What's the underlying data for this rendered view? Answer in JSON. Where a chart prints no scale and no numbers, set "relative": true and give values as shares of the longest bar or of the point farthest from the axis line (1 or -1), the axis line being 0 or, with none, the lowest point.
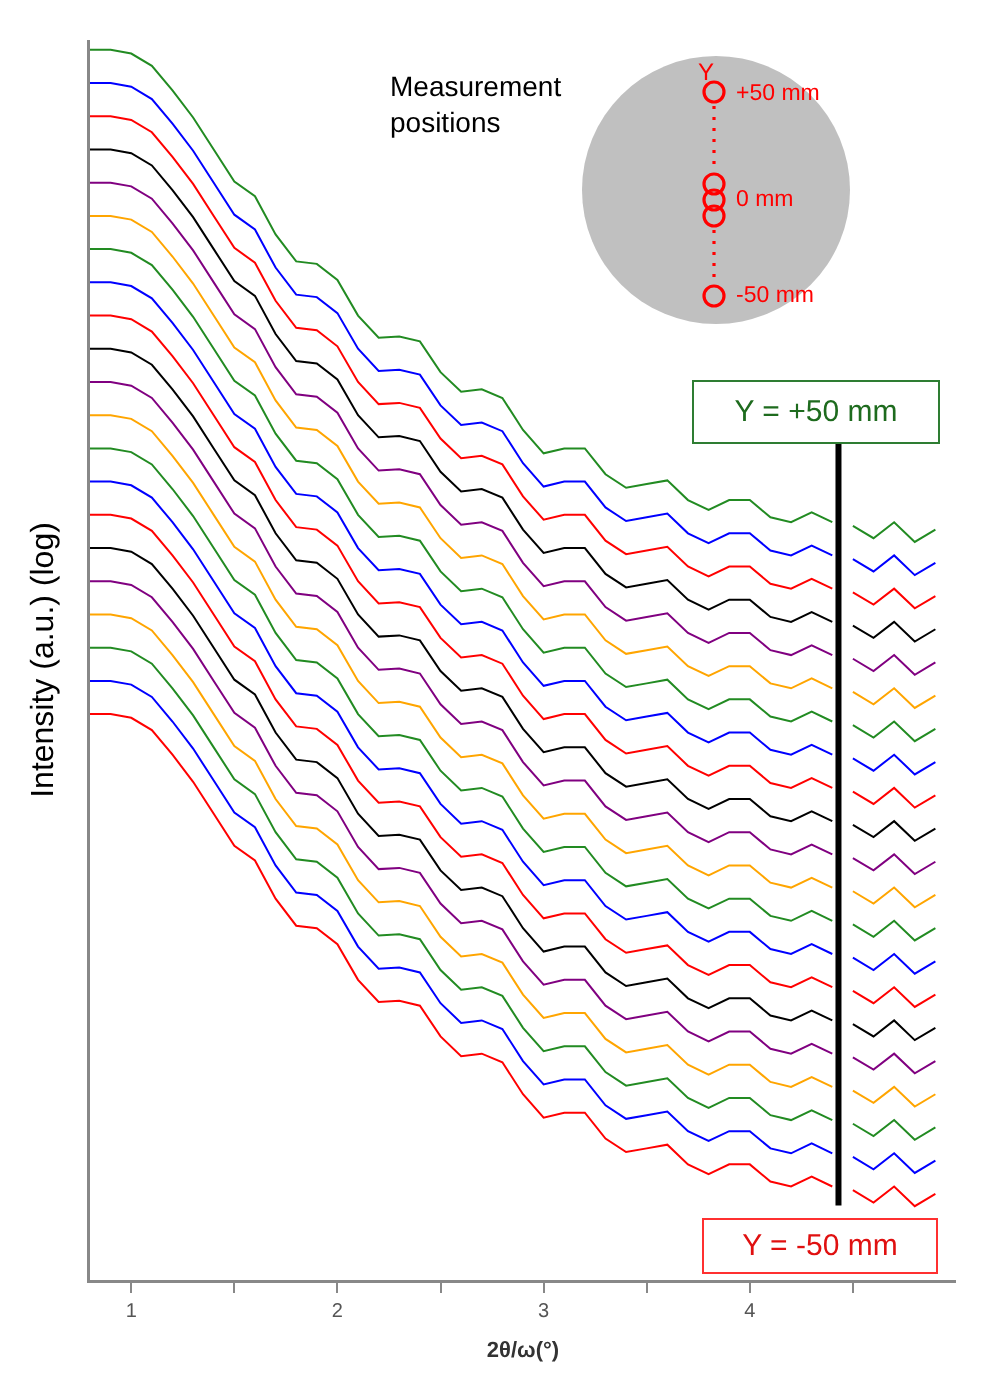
{
  "chart_data": {
    "type": "line",
    "relative": true,
    "xlabel": "2θ/ω(°)",
    "ylabel": "Intensity (a.u.) (log)",
    "xlim": [
      0.8,
      5.0
    ],
    "xticks": [
      1,
      2,
      3,
      4,
      {
        "value": 1.5,
        "label": null
      },
      {
        "value": 2.5,
        "label": null
      },
      {
        "value": 3.5,
        "label": null
      },
      {
        "value": 4.5,
        "label": null
      }
    ],
    "tick_labels": "x",
    "grid": false,
    "x": [
      0.8,
      0.9,
      1.0,
      1.1,
      1.2,
      1.3,
      1.4,
      1.5,
      1.6,
      1.7,
      1.8,
      1.9,
      2.0,
      2.1,
      2.2,
      2.3,
      2.4,
      2.5,
      2.6,
      2.7,
      2.8,
      2.9,
      3.0,
      3.1,
      3.2,
      3.3,
      3.4,
      3.5,
      3.6,
      3.7,
      3.8,
      3.9,
      4.0,
      4.1,
      4.2,
      4.3,
      4.4,
      4.45,
      4.5,
      4.6,
      4.7,
      4.8,
      4.9
    ],
    "series": [
      {
        "color": "#228b22",
        "values": [
          1,
          1,
          0.997,
          0.987,
          0.967,
          0.945,
          0.919,
          0.893,
          0.881,
          0.85,
          0.828,
          0.826,
          0.813,
          0.784,
          0.766,
          0.767,
          0.763,
          0.738,
          0.722,
          0.724,
          0.717,
          0.691,
          0.672,
          0.676,
          0.676,
          0.655,
          0.644,
          0.647,
          0.65,
          0.634,
          0.626,
          0.634,
          0.634,
          0.62,
          0.616,
          0.624,
          0.616,
          null,
          0.613,
          0.603,
          0.616,
          0.6,
          0.61
        ]
      },
      {
        "color": "#0000ff",
        "values": [
          0.973,
          0.973,
          0.97,
          0.96,
          0.94,
          0.918,
          0.892,
          0.866,
          0.854,
          0.823,
          0.801,
          0.799,
          0.786,
          0.757,
          0.739,
          0.74,
          0.736,
          0.711,
          0.695,
          0.697,
          0.69,
          0.664,
          0.645,
          0.649,
          0.649,
          0.628,
          0.617,
          0.62,
          0.623,
          0.607,
          0.599,
          0.607,
          0.607,
          0.593,
          0.589,
          0.597,
          0.589,
          null,
          0.586,
          0.576,
          0.589,
          0.573,
          0.583
        ]
      },
      {
        "color": "#ff0000",
        "values": [
          0.946,
          0.946,
          0.943,
          0.933,
          0.913,
          0.891,
          0.865,
          0.839,
          0.827,
          0.796,
          0.774,
          0.772,
          0.759,
          0.73,
          0.712,
          0.713,
          0.709,
          0.684,
          0.668,
          0.67,
          0.663,
          0.637,
          0.618,
          0.622,
          0.622,
          0.601,
          0.59,
          0.593,
          0.596,
          0.58,
          0.572,
          0.58,
          0.58,
          0.566,
          0.562,
          0.57,
          0.562,
          null,
          0.559,
          0.549,
          0.562,
          0.546,
          0.556
        ]
      },
      {
        "color": "#000000",
        "values": [
          0.919,
          0.919,
          0.916,
          0.906,
          0.886,
          0.864,
          0.838,
          0.812,
          0.8,
          0.769,
          0.747,
          0.745,
          0.732,
          0.703,
          0.685,
          0.686,
          0.682,
          0.657,
          0.641,
          0.643,
          0.636,
          0.61,
          0.591,
          0.595,
          0.595,
          0.574,
          0.563,
          0.566,
          0.569,
          0.553,
          0.545,
          0.553,
          0.553,
          0.539,
          0.535,
          0.543,
          0.535,
          null,
          0.532,
          0.522,
          0.535,
          0.519,
          0.529
        ]
      },
      {
        "color": "#800080",
        "values": [
          0.892,
          0.892,
          0.889,
          0.879,
          0.859,
          0.837,
          0.811,
          0.785,
          0.773,
          0.742,
          0.72,
          0.718,
          0.705,
          0.676,
          0.658,
          0.659,
          0.655,
          0.63,
          0.614,
          0.616,
          0.609,
          0.583,
          0.564,
          0.568,
          0.568,
          0.547,
          0.536,
          0.539,
          0.542,
          0.526,
          0.518,
          0.526,
          0.526,
          0.512,
          0.508,
          0.516,
          0.508,
          null,
          0.505,
          0.495,
          0.508,
          0.492,
          0.502
        ]
      },
      {
        "color": "#ffa500",
        "values": [
          0.865,
          0.865,
          0.862,
          0.852,
          0.832,
          0.81,
          0.784,
          0.758,
          0.746,
          0.715,
          0.693,
          0.691,
          0.678,
          0.649,
          0.631,
          0.632,
          0.628,
          0.603,
          0.587,
          0.589,
          0.582,
          0.556,
          0.537,
          0.541,
          0.541,
          0.52,
          0.509,
          0.512,
          0.515,
          0.499,
          0.491,
          0.499,
          0.499,
          0.485,
          0.481,
          0.489,
          0.481,
          null,
          0.478,
          0.468,
          0.481,
          0.465,
          0.475
        ]
      },
      {
        "color": "#228b22",
        "values": [
          0.838,
          0.838,
          0.835,
          0.825,
          0.805,
          0.783,
          0.757,
          0.731,
          0.719,
          0.688,
          0.666,
          0.664,
          0.651,
          0.622,
          0.604,
          0.605,
          0.601,
          0.576,
          0.56,
          0.562,
          0.555,
          0.529,
          0.51,
          0.514,
          0.514,
          0.493,
          0.482,
          0.485,
          0.488,
          0.472,
          0.464,
          0.472,
          0.472,
          0.458,
          0.454,
          0.462,
          0.454,
          null,
          0.451,
          0.441,
          0.454,
          0.438,
          0.448
        ]
      },
      {
        "color": "#0000ff",
        "values": [
          0.811,
          0.811,
          0.808,
          0.798,
          0.778,
          0.756,
          0.73,
          0.704,
          0.692,
          0.661,
          0.639,
          0.637,
          0.624,
          0.595,
          0.577,
          0.578,
          0.574,
          0.549,
          0.533,
          0.535,
          0.528,
          0.502,
          0.483,
          0.487,
          0.487,
          0.466,
          0.455,
          0.458,
          0.461,
          0.445,
          0.437,
          0.445,
          0.445,
          0.431,
          0.427,
          0.435,
          0.427,
          null,
          0.424,
          0.414,
          0.427,
          0.411,
          0.421
        ]
      },
      {
        "color": "#ff0000",
        "values": [
          0.784,
          0.784,
          0.781,
          0.771,
          0.751,
          0.729,
          0.703,
          0.677,
          0.665,
          0.634,
          0.612,
          0.61,
          0.597,
          0.568,
          0.55,
          0.551,
          0.547,
          0.522,
          0.506,
          0.508,
          0.501,
          0.475,
          0.456,
          0.46,
          0.46,
          0.439,
          0.428,
          0.431,
          0.434,
          0.418,
          0.41,
          0.418,
          0.418,
          0.404,
          0.4,
          0.408,
          0.4,
          null,
          0.397,
          0.387,
          0.4,
          0.384,
          0.394
        ]
      },
      {
        "color": "#000000",
        "values": [
          0.757,
          0.757,
          0.754,
          0.744,
          0.724,
          0.702,
          0.676,
          0.65,
          0.638,
          0.607,
          0.585,
          0.583,
          0.57,
          0.541,
          0.523,
          0.524,
          0.52,
          0.495,
          0.479,
          0.481,
          0.474,
          0.448,
          0.429,
          0.433,
          0.433,
          0.412,
          0.401,
          0.404,
          0.407,
          0.391,
          0.383,
          0.391,
          0.391,
          0.377,
          0.373,
          0.381,
          0.373,
          null,
          0.37,
          0.36,
          0.373,
          0.357,
          0.367
        ]
      },
      {
        "color": "#800080",
        "values": [
          0.73,
          0.73,
          0.727,
          0.717,
          0.697,
          0.675,
          0.649,
          0.623,
          0.611,
          0.58,
          0.558,
          0.556,
          0.543,
          0.514,
          0.496,
          0.497,
          0.493,
          0.468,
          0.452,
          0.454,
          0.447,
          0.421,
          0.402,
          0.406,
          0.406,
          0.385,
          0.374,
          0.377,
          0.38,
          0.364,
          0.356,
          0.364,
          0.364,
          0.35,
          0.346,
          0.354,
          0.346,
          null,
          0.343,
          0.333,
          0.346,
          0.33,
          0.34
        ]
      },
      {
        "color": "#ffa500",
        "values": [
          0.703,
          0.703,
          0.7,
          0.69,
          0.67,
          0.648,
          0.622,
          0.596,
          0.584,
          0.553,
          0.531,
          0.529,
          0.516,
          0.487,
          0.469,
          0.47,
          0.466,
          0.441,
          0.425,
          0.427,
          0.42,
          0.394,
          0.375,
          0.379,
          0.379,
          0.358,
          0.347,
          0.35,
          0.353,
          0.337,
          0.329,
          0.337,
          0.337,
          0.323,
          0.319,
          0.327,
          0.319,
          null,
          0.316,
          0.306,
          0.319,
          0.303,
          0.313
        ]
      },
      {
        "color": "#228b22",
        "values": [
          0.676,
          0.676,
          0.673,
          0.663,
          0.643,
          0.621,
          0.595,
          0.569,
          0.557,
          0.526,
          0.504,
          0.502,
          0.489,
          0.46,
          0.442,
          0.443,
          0.439,
          0.414,
          0.398,
          0.4,
          0.393,
          0.367,
          0.348,
          0.352,
          0.352,
          0.331,
          0.32,
          0.323,
          0.326,
          0.31,
          0.302,
          0.31,
          0.31,
          0.296,
          0.292,
          0.3,
          0.292,
          null,
          0.289,
          0.279,
          0.292,
          0.276,
          0.286
        ]
      },
      {
        "color": "#0000ff",
        "values": [
          0.649,
          0.649,
          0.646,
          0.636,
          0.616,
          0.594,
          0.568,
          0.542,
          0.53,
          0.499,
          0.477,
          0.475,
          0.462,
          0.433,
          0.415,
          0.416,
          0.412,
          0.387,
          0.371,
          0.373,
          0.366,
          0.34,
          0.321,
          0.325,
          0.325,
          0.304,
          0.293,
          0.296,
          0.299,
          0.283,
          0.275,
          0.283,
          0.283,
          0.269,
          0.265,
          0.273,
          0.265,
          null,
          0.262,
          0.252,
          0.265,
          0.249,
          0.259
        ]
      },
      {
        "color": "#ff0000",
        "values": [
          0.622,
          0.622,
          0.619,
          0.609,
          0.589,
          0.567,
          0.541,
          0.515,
          0.503,
          0.472,
          0.45,
          0.448,
          0.435,
          0.406,
          0.388,
          0.389,
          0.385,
          0.36,
          0.344,
          0.346,
          0.339,
          0.313,
          0.294,
          0.298,
          0.298,
          0.277,
          0.266,
          0.269,
          0.272,
          0.256,
          0.248,
          0.256,
          0.256,
          0.242,
          0.238,
          0.246,
          0.238,
          null,
          0.235,
          0.225,
          0.238,
          0.222,
          0.232
        ]
      },
      {
        "color": "#000000",
        "values": [
          0.595,
          0.595,
          0.592,
          0.582,
          0.562,
          0.54,
          0.514,
          0.488,
          0.476,
          0.445,
          0.423,
          0.421,
          0.408,
          0.379,
          0.361,
          0.362,
          0.358,
          0.333,
          0.317,
          0.319,
          0.312,
          0.286,
          0.267,
          0.271,
          0.271,
          0.25,
          0.239,
          0.242,
          0.245,
          0.229,
          0.221,
          0.229,
          0.229,
          0.215,
          0.211,
          0.219,
          0.211,
          null,
          0.208,
          0.198,
          0.211,
          0.195,
          0.205
        ]
      },
      {
        "color": "#800080",
        "values": [
          0.568,
          0.568,
          0.565,
          0.555,
          0.535,
          0.513,
          0.487,
          0.461,
          0.449,
          0.418,
          0.396,
          0.394,
          0.381,
          0.352,
          0.334,
          0.335,
          0.331,
          0.306,
          0.29,
          0.292,
          0.285,
          0.259,
          0.24,
          0.244,
          0.244,
          0.223,
          0.212,
          0.215,
          0.218,
          0.202,
          0.194,
          0.202,
          0.202,
          0.188,
          0.184,
          0.192,
          0.184,
          null,
          0.181,
          0.171,
          0.184,
          0.168,
          0.178
        ]
      },
      {
        "color": "#ffa500",
        "values": [
          0.541,
          0.541,
          0.538,
          0.528,
          0.508,
          0.486,
          0.46,
          0.434,
          0.422,
          0.391,
          0.369,
          0.367,
          0.354,
          0.325,
          0.307,
          0.308,
          0.304,
          0.279,
          0.263,
          0.265,
          0.258,
          0.232,
          0.213,
          0.217,
          0.217,
          0.196,
          0.185,
          0.188,
          0.191,
          0.175,
          0.167,
          0.175,
          0.175,
          0.161,
          0.157,
          0.165,
          0.157,
          null,
          0.154,
          0.144,
          0.157,
          0.141,
          0.151
        ]
      },
      {
        "color": "#228b22",
        "values": [
          0.514,
          0.514,
          0.511,
          0.501,
          0.481,
          0.459,
          0.433,
          0.407,
          0.395,
          0.364,
          0.342,
          0.34,
          0.327,
          0.298,
          0.28,
          0.281,
          0.277,
          0.252,
          0.236,
          0.238,
          0.231,
          0.205,
          0.186,
          0.19,
          0.19,
          0.169,
          0.158,
          0.161,
          0.164,
          0.148,
          0.14,
          0.148,
          0.148,
          0.134,
          0.13,
          0.138,
          0.13,
          null,
          0.127,
          0.117,
          0.13,
          0.114,
          0.124
        ]
      },
      {
        "color": "#0000ff",
        "values": [
          0.487,
          0.487,
          0.484,
          0.474,
          0.454,
          0.432,
          0.406,
          0.38,
          0.368,
          0.337,
          0.315,
          0.313,
          0.3,
          0.271,
          0.253,
          0.254,
          0.25,
          0.225,
          0.209,
          0.211,
          0.204,
          0.178,
          0.159,
          0.163,
          0.163,
          0.142,
          0.131,
          0.134,
          0.137,
          0.121,
          0.113,
          0.121,
          0.121,
          0.107,
          0.103,
          0.111,
          0.103,
          null,
          0.1,
          0.09,
          0.103,
          0.087,
          0.097
        ]
      },
      {
        "color": "#ff0000",
        "values": [
          0.46,
          0.46,
          0.457,
          0.447,
          0.427,
          0.405,
          0.379,
          0.353,
          0.341,
          0.31,
          0.288,
          0.286,
          0.273,
          0.244,
          0.226,
          0.227,
          0.223,
          0.198,
          0.182,
          0.184,
          0.177,
          0.151,
          0.132,
          0.136,
          0.136,
          0.115,
          0.104,
          0.107,
          0.11,
          0.094,
          0.086,
          0.094,
          0.094,
          0.08,
          0.076,
          0.084,
          0.076,
          null,
          0.073,
          0.063,
          0.076,
          0.06,
          0.07
        ]
      }
    ],
    "ref_lines": [
      {
        "axis": "x",
        "value": 4.43,
        "color": "#000000"
      }
    ],
    "annotations": [
      "Measurement positions",
      "Y",
      "+50 mm",
      "0 mm",
      "-50 mm",
      "Y = +50 mm",
      "Y = -50 mm"
    ]
  }
}
